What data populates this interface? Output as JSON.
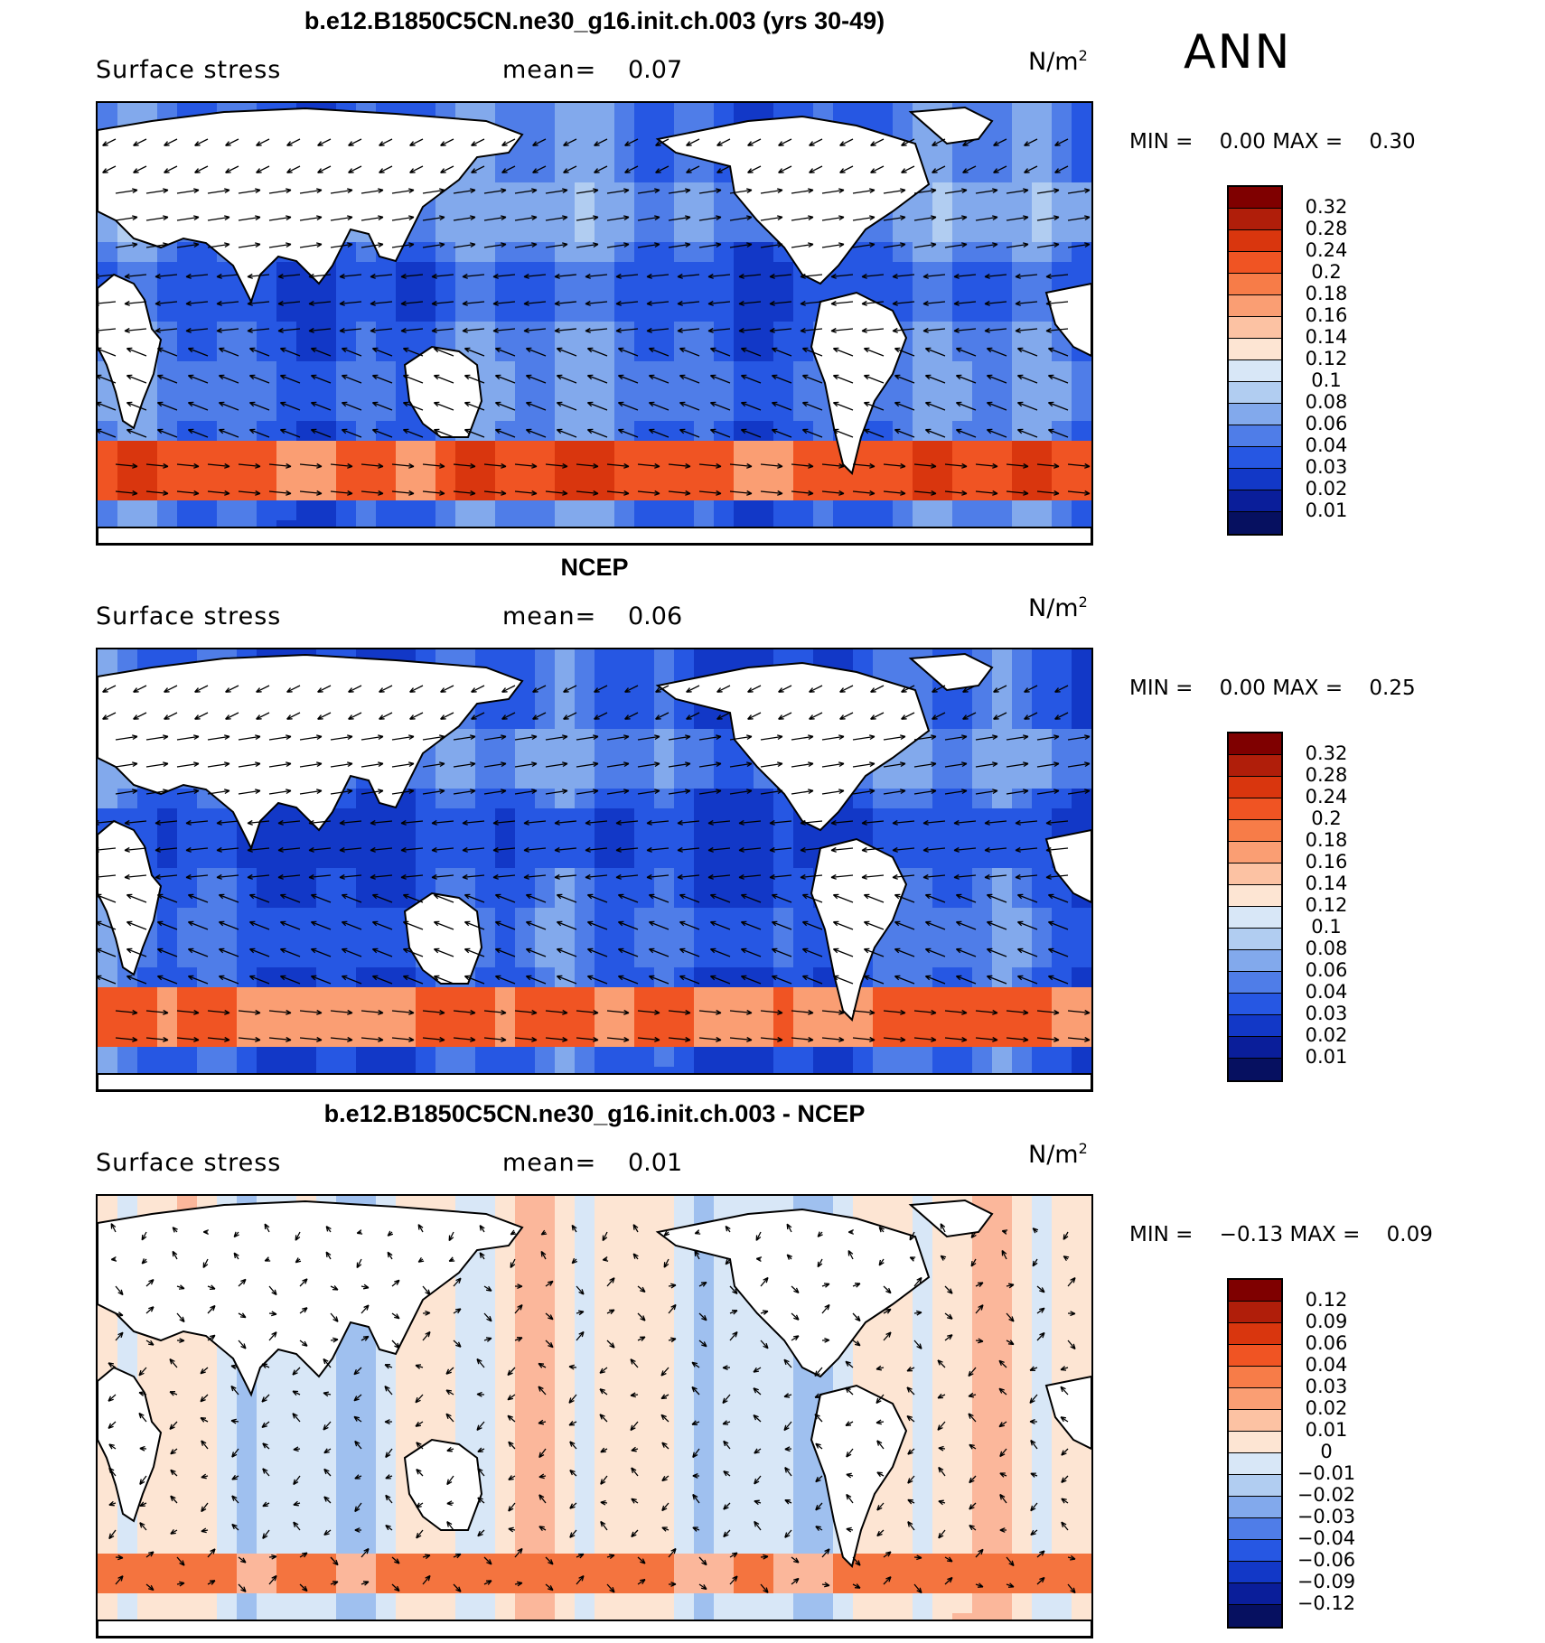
{
  "season": "ANN",
  "panels": [
    {
      "title": "b.e12.B1850C5CN.ne30_g16.init.ch.003 (yrs 30-49)",
      "field": "Surface stress",
      "mean_label": "mean=",
      "mean_value": "0.07",
      "units": "N/m",
      "units_exp": "2",
      "min_label": "MIN =",
      "min_value": "0.00",
      "max_label": "MAX =",
      "max_value": "0.30",
      "kind": "model",
      "colorbar": {
        "labels": [
          "0.32",
          "0.28",
          "0.24",
          "0.2",
          "0.18",
          "0.16",
          "0.14",
          "0.12",
          "0.1",
          "0.08",
          "0.06",
          "0.04",
          "0.03",
          "0.02",
          "0.01"
        ],
        "colors": [
          "#7f0000",
          "#b01e0a",
          "#d9360e",
          "#f05423",
          "#f77c48",
          "#fa9e73",
          "#fcc2a3",
          "#fde5d3",
          "#d8e7f7",
          "#b1cdf1",
          "#82a9ec",
          "#4f7de8",
          "#2657e3",
          "#1238c7",
          "#0a1e9a",
          "#061060"
        ]
      }
    },
    {
      "title": "NCEP",
      "field": "Surface stress",
      "mean_label": "mean=",
      "mean_value": "0.06",
      "units": "N/m",
      "units_exp": "2",
      "min_label": "MIN =",
      "min_value": "0.00",
      "max_label": "MAX =",
      "max_value": "0.25",
      "kind": "obs",
      "colorbar": {
        "labels": [
          "0.32",
          "0.28",
          "0.24",
          "0.2",
          "0.18",
          "0.16",
          "0.14",
          "0.12",
          "0.1",
          "0.08",
          "0.06",
          "0.04",
          "0.03",
          "0.02",
          "0.01"
        ],
        "colors": [
          "#7f0000",
          "#b01e0a",
          "#d9360e",
          "#f05423",
          "#f77c48",
          "#fa9e73",
          "#fcc2a3",
          "#fde5d3",
          "#d8e7f7",
          "#b1cdf1",
          "#82a9ec",
          "#4f7de8",
          "#2657e3",
          "#1238c7",
          "#0a1e9a",
          "#061060"
        ]
      }
    },
    {
      "title": "b.e12.B1850C5CN.ne30_g16.init.ch.003 - NCEP",
      "field": "Surface stress",
      "mean_label": "mean=",
      "mean_value": "0.01",
      "units": "N/m",
      "units_exp": "2",
      "min_label": "MIN =",
      "min_value": "−0.13",
      "max_label": "MAX =",
      "max_value": "0.09",
      "kind": "diff",
      "colorbar": {
        "labels": [
          "0.12",
          "0.09",
          "0.06",
          "0.04",
          "0.03",
          "0.02",
          "0.01",
          "0",
          "−0.01",
          "−0.02",
          "−0.03",
          "−0.04",
          "−0.06",
          "−0.09",
          "−0.12"
        ],
        "colors": [
          "#7f0000",
          "#b01e0a",
          "#d9360e",
          "#f05423",
          "#f77c48",
          "#fa9e73",
          "#fcc2a3",
          "#fde5d3",
          "#d8e7f7",
          "#b1cdf1",
          "#82a9ec",
          "#4f7de8",
          "#2657e3",
          "#1238c7",
          "#0a1e9a",
          "#061060"
        ]
      }
    }
  ]
}
